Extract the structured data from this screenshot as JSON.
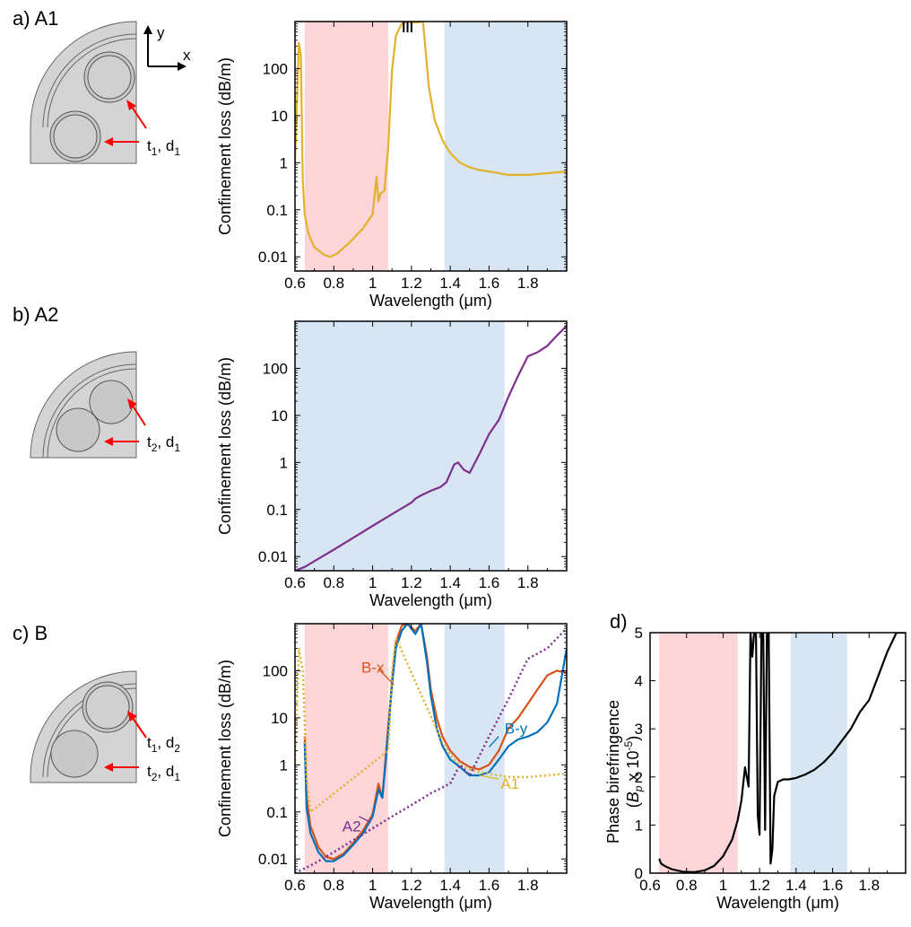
{
  "panels": [
    {
      "label": "a) A1",
      "sub1": "t",
      "sub1_idx": "1",
      "sub2": "d",
      "sub2_idx": "1",
      "sep": ", "
    },
    {
      "label": "b) A2",
      "sub1": "t",
      "sub1_idx": "2",
      "sub2": "d",
      "sub2_idx": "1",
      "sep": ", "
    },
    {
      "label": "c) B",
      "sub1": "t",
      "sub1_idx": "1",
      "sub2": "d",
      "sub2_idx": "2",
      "sep": ", ",
      "sub3": "t",
      "sub3_idx": "2",
      "sub4": "d",
      "sub4_idx": "1"
    }
  ],
  "axes_glyph": {
    "y": "y",
    "x": "x"
  },
  "panel_d_label": "d)",
  "colors": {
    "A1": "#e3b12a",
    "A2": "#7e2f8e",
    "Bx": "#d95319",
    "By": "#0072bd",
    "red_band": "#fbd5d8",
    "blue_band": "#d7e6f2",
    "fiber": "#d4d4d4"
  },
  "chart_data": [
    {
      "type": "line",
      "panel": "a",
      "xlabel": "Wavelength (μm)",
      "ylabel": "Confinement loss (dB/m)",
      "xlim": [
        0.6,
        2.0
      ],
      "ylim": [
        0.005,
        1000
      ],
      "yscale": "log",
      "xticks": [
        "0.6",
        "0.8",
        "1",
        "1.2",
        "1.4",
        "1.6",
        "1.8"
      ],
      "yticks": [
        "0.01",
        "0.1",
        "1",
        "10",
        "100"
      ],
      "bands": [
        {
          "color": "red",
          "x": [
            0.65,
            1.08
          ]
        },
        {
          "color": "blue",
          "x": [
            1.37,
            2.0
          ]
        }
      ],
      "series": [
        {
          "key": "A1",
          "x": [
            0.6,
            0.62,
            0.63,
            0.64,
            0.65,
            0.67,
            0.7,
            0.75,
            0.78,
            0.82,
            0.88,
            0.95,
            1.0,
            1.02,
            1.03,
            1.04,
            1.06,
            1.08,
            1.1,
            1.12,
            1.15,
            1.18,
            1.22,
            1.26,
            1.29,
            1.32,
            1.36,
            1.4,
            1.45,
            1.5,
            1.55,
            1.6,
            1.7,
            1.8,
            1.9,
            2.0
          ],
          "y": [
            1,
            350,
            200,
            0.4,
            0.08,
            0.03,
            0.016,
            0.011,
            0.01,
            0.012,
            0.02,
            0.04,
            0.08,
            0.5,
            0.15,
            0.22,
            0.25,
            2,
            90,
            500,
            900,
            1000,
            950,
            1000,
            40,
            8,
            3,
            1.6,
            1,
            0.8,
            0.7,
            0.65,
            0.55,
            0.55,
            0.6,
            0.65
          ]
        },
        {
          "key": "black_spikes",
          "x": [
            1.16,
            1.18,
            1.2
          ],
          "y": [
            1000,
            1000,
            1000
          ]
        }
      ]
    },
    {
      "type": "line",
      "panel": "b",
      "xlabel": "Wavelength (μm)",
      "ylabel": "Confinement loss (dB/m)",
      "xlim": [
        0.6,
        2.0
      ],
      "ylim": [
        0.005,
        1000
      ],
      "yscale": "log",
      "xticks": [
        "0.6",
        "0.8",
        "1",
        "1.2",
        "1.4",
        "1.6",
        "1.8"
      ],
      "yticks": [
        "0.01",
        "0.1",
        "1",
        "10",
        "100"
      ],
      "bands": [
        {
          "color": "blue",
          "x": [
            0.6,
            1.68
          ]
        }
      ],
      "series": [
        {
          "key": "A2",
          "x": [
            0.6,
            0.65,
            0.7,
            0.8,
            0.9,
            1.0,
            1.1,
            1.2,
            1.22,
            1.25,
            1.3,
            1.35,
            1.38,
            1.42,
            1.44,
            1.47,
            1.5,
            1.55,
            1.6,
            1.65,
            1.7,
            1.75,
            1.8,
            1.85,
            1.9,
            1.95,
            2.0
          ],
          "y": [
            0.005,
            0.006,
            0.008,
            0.014,
            0.025,
            0.045,
            0.08,
            0.14,
            0.17,
            0.2,
            0.25,
            0.3,
            0.38,
            0.9,
            1.0,
            0.7,
            0.6,
            1.5,
            4,
            8,
            25,
            70,
            180,
            220,
            300,
            500,
            800
          ]
        }
      ]
    },
    {
      "type": "line",
      "panel": "c",
      "xlabel": "Wavelength (μm)",
      "ylabel": "Confinement loss (dB/m)",
      "xlim": [
        0.6,
        2.0
      ],
      "ylim": [
        0.005,
        1000
      ],
      "yscale": "log",
      "xticks": [
        "0.6",
        "0.8",
        "1",
        "1.2",
        "1.4",
        "1.6",
        "1.8"
      ],
      "yticks": [
        "0.01",
        "0.1",
        "1",
        "10",
        "100"
      ],
      "bands": [
        {
          "color": "red",
          "x": [
            0.65,
            1.08
          ]
        },
        {
          "color": "blue",
          "x": [
            1.37,
            1.68
          ]
        }
      ],
      "annotations": [
        {
          "text": "B-x",
          "series": "Bx"
        },
        {
          "text": "B-y",
          "series": "By"
        },
        {
          "text": "A1",
          "series": "A1"
        },
        {
          "text": "A2",
          "series": "A2"
        }
      ],
      "series": [
        {
          "key": "Bx",
          "x": [
            0.65,
            0.66,
            0.68,
            0.72,
            0.76,
            0.8,
            0.85,
            0.9,
            0.95,
            1.0,
            1.03,
            1.05,
            1.07,
            1.1,
            1.12,
            1.15,
            1.18,
            1.22,
            1.25,
            1.28,
            1.3,
            1.33,
            1.36,
            1.4,
            1.45,
            1.5,
            1.55,
            1.6,
            1.65,
            1.7,
            1.75,
            1.8,
            1.85,
            1.9,
            1.95,
            2.0
          ],
          "y": [
            4,
            0.2,
            0.05,
            0.018,
            0.011,
            0.01,
            0.013,
            0.022,
            0.04,
            0.09,
            0.4,
            0.2,
            2,
            60,
            400,
            900,
            1000,
            700,
            1000,
            200,
            40,
            10,
            4,
            2,
            1.2,
            0.9,
            0.8,
            1,
            2,
            6,
            10,
            20,
            40,
            80,
            100,
            90
          ]
        },
        {
          "key": "By",
          "x": [
            0.65,
            0.66,
            0.68,
            0.72,
            0.76,
            0.8,
            0.85,
            0.9,
            0.95,
            1.0,
            1.03,
            1.05,
            1.07,
            1.1,
            1.12,
            1.15,
            1.18,
            1.22,
            1.25,
            1.28,
            1.3,
            1.33,
            1.36,
            1.4,
            1.45,
            1.5,
            1.55,
            1.6,
            1.65,
            1.7,
            1.75,
            1.8,
            1.85,
            1.9,
            1.95,
            2.0
          ],
          "y": [
            3,
            0.12,
            0.035,
            0.014,
            0.009,
            0.009,
            0.012,
            0.02,
            0.035,
            0.08,
            0.3,
            0.2,
            1.5,
            50,
            300,
            700,
            1000,
            600,
            1000,
            150,
            30,
            6,
            2.5,
            1.3,
            0.9,
            0.6,
            0.6,
            0.7,
            1.3,
            2.5,
            3.5,
            4,
            5,
            8,
            20,
            300
          ]
        },
        {
          "key": "A1",
          "x": [
            0.6,
            0.62,
            0.64,
            0.66,
            0.68,
            1.08,
            1.1,
            1.12,
            1.36,
            1.4,
            1.45,
            1.5,
            1.55,
            1.6,
            1.7,
            1.8,
            1.9,
            2.0
          ],
          "y": [
            1,
            300,
            100,
            0.5,
            0.1,
            2,
            90,
            500,
            3,
            1.6,
            1,
            0.8,
            0.7,
            0.65,
            0.55,
            0.55,
            0.6,
            0.65
          ],
          "style": "dotted"
        },
        {
          "key": "A2",
          "x": [
            0.6,
            0.7,
            0.8,
            0.9,
            1.0,
            1.1,
            1.2,
            1.3,
            1.4,
            1.45,
            1.5,
            1.6,
            1.7,
            1.8,
            1.9,
            2.0
          ],
          "y": [
            0.005,
            0.008,
            0.014,
            0.025,
            0.045,
            0.08,
            0.14,
            0.25,
            0.4,
            1,
            0.6,
            4,
            25,
            180,
            300,
            800
          ],
          "style": "dotted"
        }
      ]
    },
    {
      "type": "line",
      "panel": "d",
      "xlabel": "Wavelength (μm)",
      "ylabel_main": "Phase birefringence",
      "ylabel_sub_pre": "(",
      "ylabel_sub_sym": "B",
      "ylabel_sub_idx": "p",
      "ylabel_sub_post": " x 10",
      "ylabel_sub_exp": "-5",
      "ylabel_sub_close": ")",
      "xlim": [
        0.6,
        2.0
      ],
      "ylim": [
        0,
        5
      ],
      "xticks": [
        "0.6",
        "0.8",
        "1",
        "1.2",
        "1.4",
        "1.6",
        "1.8"
      ],
      "yticks": [
        "0",
        "1",
        "2",
        "3",
        "4",
        "5"
      ],
      "bands": [
        {
          "color": "red",
          "x": [
            0.65,
            1.08
          ]
        },
        {
          "color": "blue",
          "x": [
            1.37,
            1.68
          ]
        }
      ],
      "series": [
        {
          "key": "Bp",
          "x": [
            0.65,
            0.66,
            0.68,
            0.72,
            0.78,
            0.84,
            0.9,
            0.95,
            1.0,
            1.05,
            1.08,
            1.1,
            1.12,
            1.14,
            1.15,
            1.16,
            1.17,
            1.18,
            1.19,
            1.2,
            1.21,
            1.22,
            1.23,
            1.24,
            1.25,
            1.26,
            1.27,
            1.28,
            1.3,
            1.33,
            1.36,
            1.4,
            1.45,
            1.5,
            1.55,
            1.6,
            1.65,
            1.7,
            1.75,
            1.8,
            1.85,
            1.9,
            1.95,
            2.0
          ],
          "y": [
            0.3,
            0.2,
            0.15,
            0.08,
            0.03,
            0.02,
            0.06,
            0.15,
            0.35,
            0.7,
            1.1,
            1.5,
            2.2,
            1.8,
            5,
            4.5,
            5,
            5,
            1.2,
            0.8,
            5,
            5,
            0.9,
            5,
            5,
            0.2,
            0.5,
            1.6,
            1.9,
            1.95,
            1.95,
            1.98,
            2.05,
            2.15,
            2.3,
            2.5,
            2.75,
            3.0,
            3.35,
            3.6,
            4.1,
            4.6,
            5,
            5
          ]
        }
      ]
    }
  ]
}
